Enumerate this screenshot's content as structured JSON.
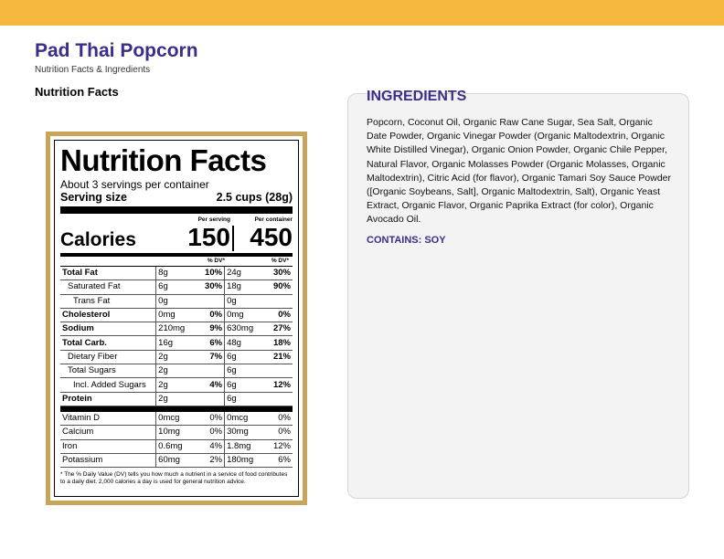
{
  "page": {
    "title": "Pad Thai Popcorn",
    "subtitle": "Nutrition Facts & Ingredients",
    "section_heading": "Nutrition Facts"
  },
  "colors": {
    "brand_bar": "#f6b83f",
    "heading": "#3b2e8a",
    "label_border": "#c9a55c"
  },
  "label": {
    "title": "Nutrition Facts",
    "servings": "About 3 servings per container",
    "serving_size_label": "Serving size",
    "serving_size_value": "2.5 cups (28g)",
    "per_serving_head": "Per serving",
    "per_container_head": "Per container",
    "calories_label": "Calories",
    "calories_serving": "150",
    "calories_container": "450",
    "dv_head_1": "% DV*",
    "dv_head_2": "% DV*",
    "rows": [
      {
        "name": "Total Fat",
        "a1": "8g",
        "p1": "10%",
        "a2": "24g",
        "p2": "30%"
      },
      {
        "name": "Saturated Fat",
        "a1": "6g",
        "p1": "30%",
        "a2": "18g",
        "p2": "90%"
      },
      {
        "name": "Trans Fat",
        "a1": "0g",
        "p1": "",
        "a2": "0g",
        "p2": ""
      },
      {
        "name": "Cholesterol",
        "a1": "0mg",
        "p1": "0%",
        "a2": "0mg",
        "p2": "0%"
      },
      {
        "name": "Sodium",
        "a1": "210mg",
        "p1": "9%",
        "a2": "630mg",
        "p2": "27%"
      },
      {
        "name": "Total Carb.",
        "a1": "16g",
        "p1": "6%",
        "a2": "48g",
        "p2": "18%"
      },
      {
        "name": "Dietary Fiber",
        "a1": "2g",
        "p1": "7%",
        "a2": "6g",
        "p2": "21%"
      },
      {
        "name": "Total Sugars",
        "a1": "2g",
        "p1": "",
        "a2": "6g",
        "p2": ""
      },
      {
        "name": "Incl. Added Sugars",
        "a1": "2g",
        "p1": "4%",
        "a2": "6g",
        "p2": "12%"
      },
      {
        "name": "Protein",
        "a1": "2g",
        "p1": "",
        "a2": "6g",
        "p2": ""
      },
      {
        "name": "Vitamin D",
        "a1": "0mcg",
        "p1": "0%",
        "a2": "0mcg",
        "p2": "0%"
      },
      {
        "name": "Calcium",
        "a1": "10mg",
        "p1": "0%",
        "a2": "30mg",
        "p2": "0%"
      },
      {
        "name": "Iron",
        "a1": "0.6mg",
        "p1": "4%",
        "a2": "1.8mg",
        "p2": "12%"
      },
      {
        "name": "Potassium",
        "a1": "60mg",
        "p1": "2%",
        "a2": "180mg",
        "p2": "6%"
      }
    ],
    "footnote": "* The % Daily Value (DV) tells you how much a nutrient in a service of food contributes to a daily diet. 2,000 calories a day is used for general nutrition advice."
  },
  "ingredients": {
    "title": "INGREDIENTS",
    "text": "Popcorn, Coconut Oil, Organic Raw Cane Sugar, Sea Salt, Organic Date Powder, Organic Vinegar Powder (Organic Maltodextrin, Organic White Distilled Vinegar), Organic Onion Powder, Organic Chile Pepper, Natural Flavor, Organic Molasses Powder (Organic Molasses, Organic Maltodextrin), Citric Acid (for flavor), Organic Tamari Soy Sauce Powder ([Organic Soybeans, Salt], Organic Maltodextrin, Salt), Organic Yeast Extract, Organic Flavor, Organic Paprika Extract (for color), Organic Avocado Oil.",
    "contains": "CONTAINS: SOY"
  }
}
